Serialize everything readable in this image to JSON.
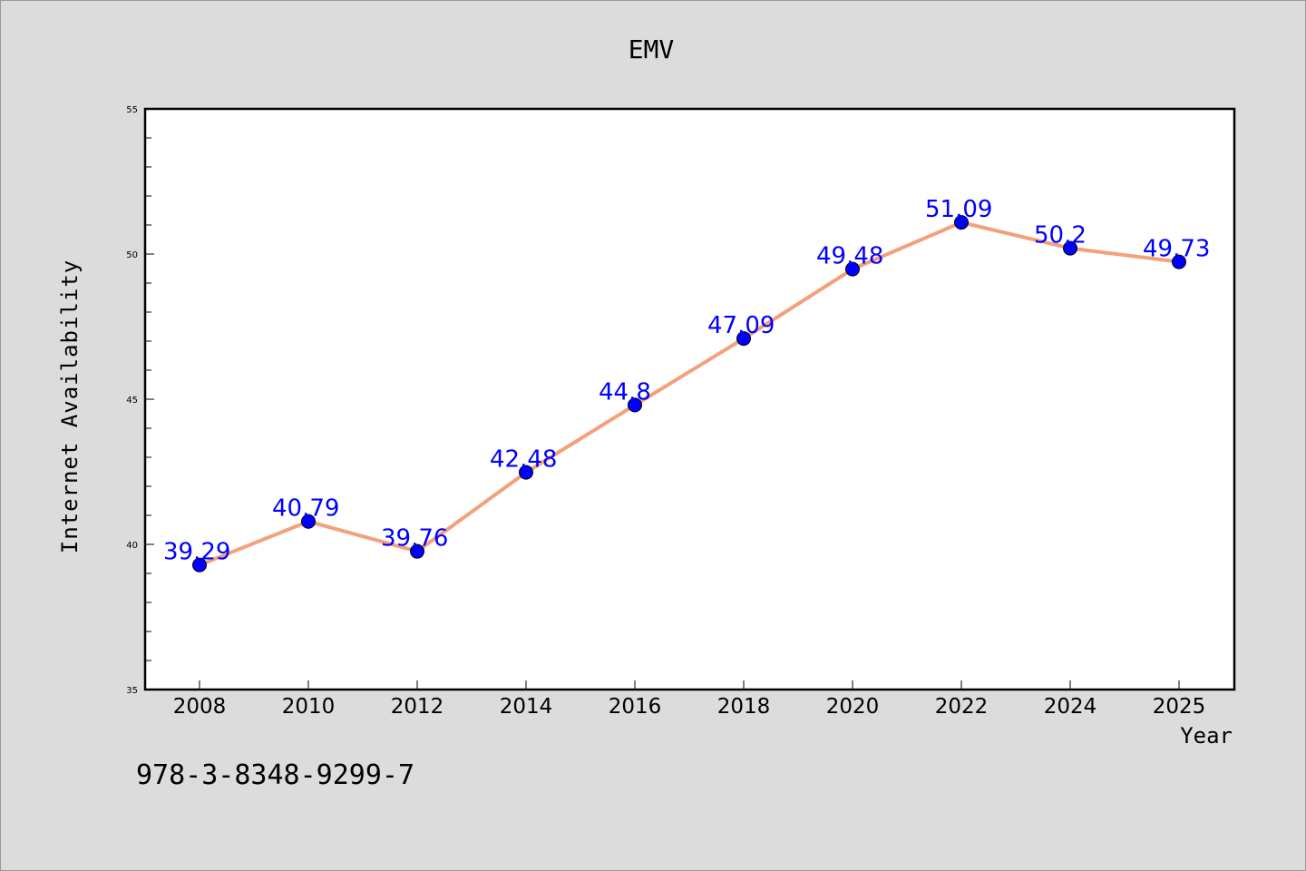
{
  "footer_text": "978-3-8348-9299-7",
  "chart_data": {
    "type": "line",
    "title": "EMV",
    "xlabel": "Year",
    "ylabel": "Internet Availability",
    "categories": [
      "2008",
      "2010",
      "2012",
      "2014",
      "2016",
      "2018",
      "2020",
      "2022",
      "2024",
      "2025"
    ],
    "series": [
      {
        "values": [
          39.29,
          40.79,
          39.76,
          42.48,
          44.8,
          47.09,
          49.48,
          51.09,
          50.2,
          49.73
        ]
      }
    ],
    "data_labels": [
      "39.29",
      "40.79",
      "39.76",
      "42.48",
      "44.8",
      "47.09",
      "49.48",
      "51.09",
      "50.2",
      "49.73"
    ],
    "ylim": [
      35,
      55
    ],
    "yticks": [
      35,
      40,
      45,
      50,
      55
    ],
    "ytick_labels": [
      "35",
      "40",
      "45",
      "50",
      "55"
    ],
    "grid": false,
    "colors": {
      "line": "#f4a07a",
      "marker": "#0000ff",
      "data_label": "#0000ff",
      "background": "#dcdcdc",
      "plot_area": "#ffffff"
    }
  }
}
